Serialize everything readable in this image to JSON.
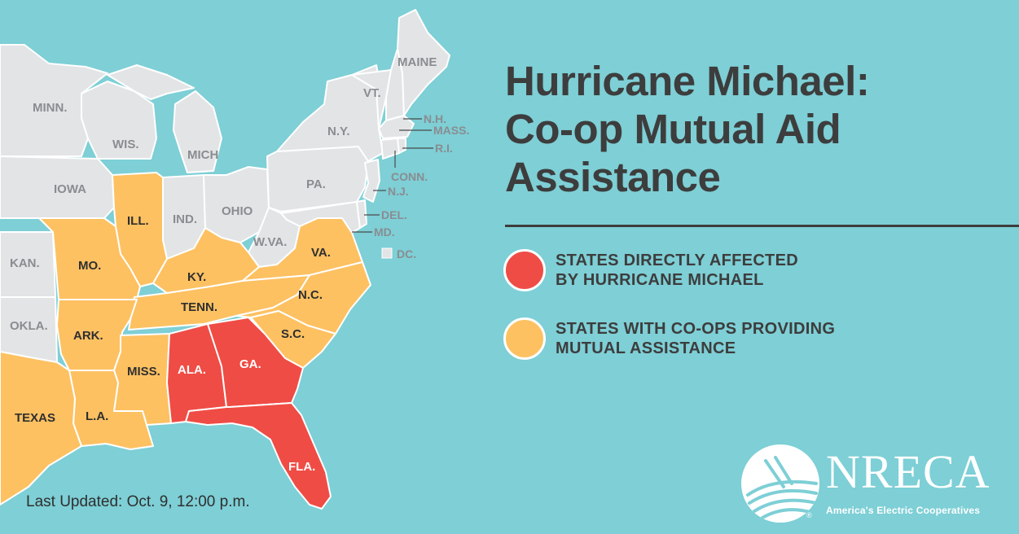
{
  "title": {
    "line1": "Hurricane Michael:",
    "line2": "Co-op Mutual Aid",
    "line3": "Assistance"
  },
  "legend": [
    {
      "color": "#ef4c45",
      "line1": "STATES DIRECTLY AFFECTED",
      "line2": "BY HURRICANE MICHAEL"
    },
    {
      "color": "#fdc162",
      "line1": "STATES WITH CO-OPS PROVIDING",
      "line2": "MUTUAL ASSISTANCE"
    }
  ],
  "colors": {
    "background": "#7ecfd6",
    "unaffected_state": "#e2e4e6",
    "affected": "#ef4c45",
    "assisting": "#fdc162",
    "title_text": "#3d3d3d"
  },
  "map": {
    "states": {
      "minn": "MINN.",
      "wis": "WIS.",
      "mich": "MICH",
      "iowa": "IOWA",
      "ill": "ILL.",
      "ind": "IND.",
      "ohio": "OHIO",
      "pa": "PA.",
      "ny": "N.Y.",
      "vt": "VT.",
      "maine": "MAINE",
      "nh": "N.H.",
      "mass": "MASS.",
      "ri": "R.I.",
      "conn": "CONN.",
      "nj": "N.J.",
      "del": "DEL.",
      "md": "MD.",
      "dc": "DC.",
      "wva": "W.VA.",
      "va": "VA.",
      "ky": "KY.",
      "mo": "MO.",
      "kan": "KAN.",
      "okla": "OKLA.",
      "ark": "ARK.",
      "tenn": "TENN.",
      "nc": "N.C.",
      "sc": "S.C.",
      "ga": "GA.",
      "ala": "ALA.",
      "miss": "MISS.",
      "la": "L.A.",
      "texas": "TEXAS",
      "fla": "FLA."
    },
    "affected_states": [
      "ALA.",
      "GA.",
      "FLA."
    ],
    "assisting_states": [
      "ILL.",
      "MO.",
      "KY.",
      "VA.",
      "N.C.",
      "TENN.",
      "S.C.",
      "ARK.",
      "MISS.",
      "L.A.",
      "TEXAS"
    ]
  },
  "footer": {
    "last_updated": "Last Updated: Oct. 9, 12:00 p.m."
  },
  "logo": {
    "wordmark": "NRECA",
    "tagline": "America's Electric Cooperatives",
    "registered": "®"
  }
}
